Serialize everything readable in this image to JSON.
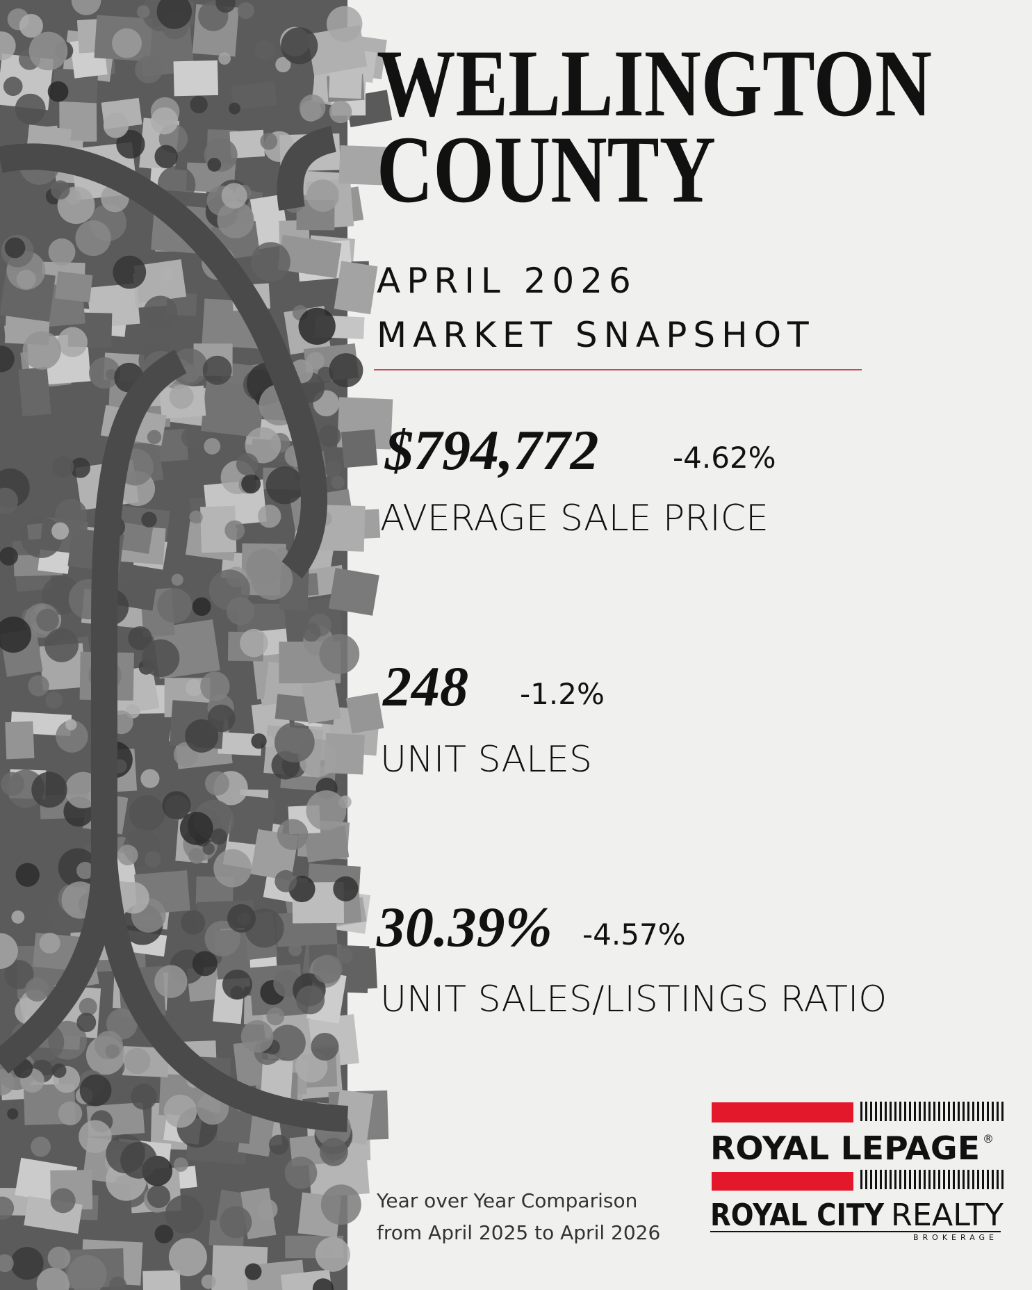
{
  "header": {
    "title_lines": [
      "WELLINGTON",
      "COUNTY"
    ],
    "subtitle_lines": [
      "APRIL 2026",
      "MARKET SNAPSHOT"
    ]
  },
  "stats": [
    {
      "value": "$794,772",
      "change": "-4.62%",
      "label": "AVERAGE SALE PRICE"
    },
    {
      "value": "248",
      "change": "-1.2%",
      "label": "UNIT SALES"
    },
    {
      "value": "30.39%",
      "change": "-4.57%",
      "label": "UNIT SALES/LISTINGS RATIO"
    }
  ],
  "footer": {
    "note_lines": [
      "Year over Year Comparison",
      "from April 2025 to April 2026"
    ]
  },
  "logo": {
    "brand": "ROYAL LEPAGE",
    "registered": "®",
    "office": "ROYAL CITY",
    "office_suffix": "REALTY",
    "designation": "BROKERAGE"
  }
}
